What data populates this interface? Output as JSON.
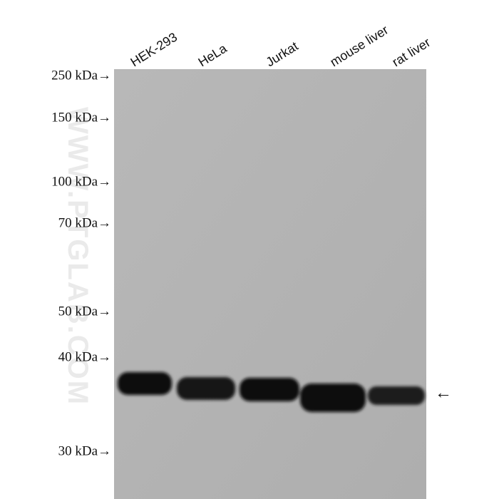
{
  "lanes": [
    "HEK-293",
    "HeLa",
    "Jurkat",
    "mouse liver",
    "rat liver"
  ],
  "markers": [
    "250 kDa→",
    "150 kDa→",
    "100 kDa→",
    "70 kDa→",
    "50 kDa→",
    "40 kDa→",
    "30 kDa→"
  ],
  "watermark": "WWW.PTGLAB.COM",
  "band_arrow": "←"
}
